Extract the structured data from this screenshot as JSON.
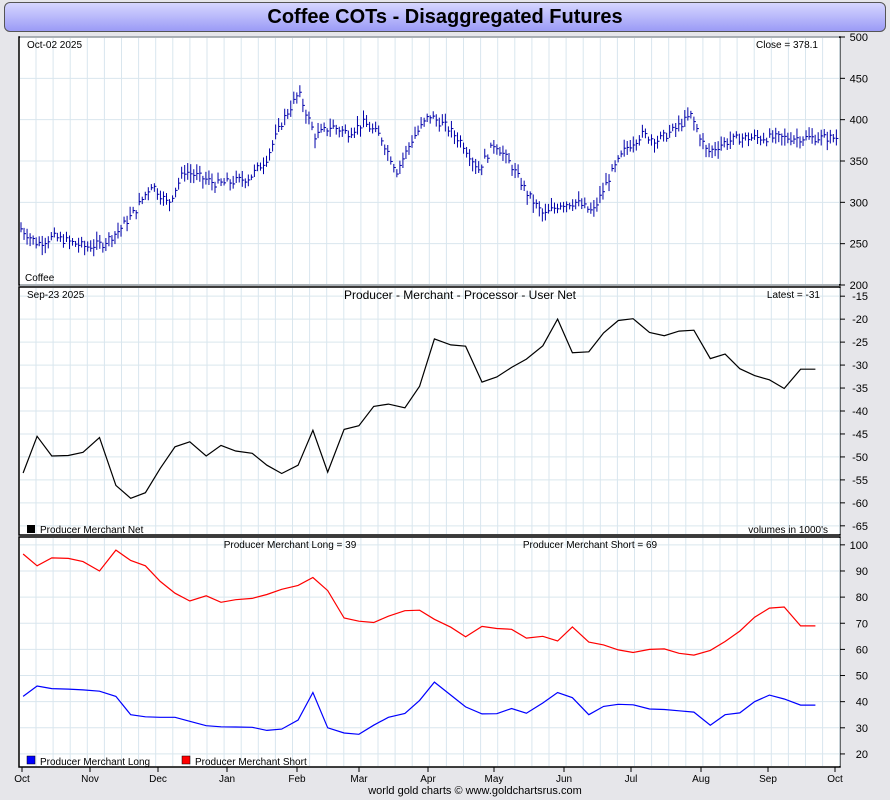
{
  "title": "Coffee COTs - Disaggregated Futures",
  "footer": "world gold charts © www.goldchartsrus.com",
  "x_axis_labels": [
    "Oct",
    "Nov",
    "Dec",
    "Jan",
    "Feb",
    "Mar",
    "Apr",
    "May",
    "Jun",
    "Jul",
    "Aug",
    "Sep",
    "Oct"
  ],
  "colors": {
    "price": "#0000aa",
    "net": "#000000",
    "long": "#0000ff",
    "short": "#ff0000",
    "grid": "#d9e6ee",
    "title_bar": "#9b9bf6"
  },
  "chart_data": [
    {
      "type": "bar",
      "subtype": "ohlc",
      "name": "Coffee",
      "date_label": "Oct-02  2025",
      "close_label": "Close = 378.1",
      "ylim": [
        200,
        500
      ],
      "yticks": [
        200,
        250,
        300,
        350,
        400,
        450,
        500
      ],
      "x": [
        0,
        0.02,
        0.04,
        0.06,
        0.08,
        0.1,
        0.12,
        0.14,
        0.16,
        0.18,
        0.2,
        0.22,
        0.24,
        0.26,
        0.28,
        0.3,
        0.32,
        0.34,
        0.36,
        0.38,
        0.4,
        0.42,
        0.44,
        0.46,
        0.48,
        0.5,
        0.52,
        0.54,
        0.56,
        0.58,
        0.6,
        0.62,
        0.64,
        0.66,
        0.68,
        0.7,
        0.72,
        0.74,
        0.76,
        0.78,
        0.8,
        0.82,
        0.84,
        0.86,
        0.88,
        0.9,
        0.92,
        0.94,
        0.96,
        0.98,
        1.0
      ],
      "close": [
        268,
        250,
        258,
        252,
        246,
        250,
        266,
        290,
        322,
        298,
        338,
        330,
        322,
        325,
        330,
        352,
        398,
        432,
        380,
        392,
        384,
        396,
        380,
        338,
        378,
        405,
        392,
        372,
        340,
        372,
        345,
        310,
        284,
        298,
        300,
        288,
        330,
        365,
        382,
        375,
        388,
        405,
        360,
        372,
        378,
        378,
        378,
        378,
        378,
        378,
        378
      ],
      "x_end": 0.998
    },
    {
      "type": "line",
      "title": "Producer - Merchant - Processor - User Net",
      "date_label": "Sep-23  2025",
      "latest_label": "Latest = -31",
      "legend": "Producer Merchant Net",
      "units_label": "volumes in 1000's",
      "ylim": [
        -67,
        -13
      ],
      "yticks": [
        -65,
        -60,
        -55,
        -50,
        -45,
        -40,
        -35,
        -30,
        -25,
        -20,
        -15
      ],
      "x": [
        0.005,
        0.022,
        0.04,
        0.06,
        0.078,
        0.098,
        0.118,
        0.136,
        0.154,
        0.172,
        0.19,
        0.208,
        0.228,
        0.246,
        0.264,
        0.284,
        0.302,
        0.32,
        0.34,
        0.358,
        0.376,
        0.396,
        0.414,
        0.432,
        0.45,
        0.47,
        0.488,
        0.506,
        0.526,
        0.544,
        0.564,
        0.582,
        0.6,
        0.618,
        0.638,
        0.656,
        0.674,
        0.694,
        0.712,
        0.73,
        0.748,
        0.768,
        0.786,
        0.804,
        0.822,
        0.842,
        0.86,
        0.878,
        0.896,
        0.914,
        0.932,
        0.952,
        0.97
      ],
      "values": [
        -53.5,
        -45.5,
        -49.8,
        -49.7,
        -49,
        -45.8,
        -56.2,
        -59,
        -57.8,
        -52.5,
        -47.8,
        -46.7,
        -49.8,
        -47.5,
        -48.7,
        -49.2,
        -51.8,
        -53.6,
        -51.8,
        -44.2,
        -53.3,
        -44,
        -43.2,
        -39,
        -38.5,
        -39.3,
        -34.6,
        -24.3,
        -25.6,
        -25.9,
        -33.7,
        -32.6,
        -30.5,
        -28.7,
        -25.8,
        -20,
        -27.3,
        -27.1,
        -23,
        -20.3,
        -19.9,
        -22.9,
        -23.6,
        -22.6,
        -22.4,
        -28.6,
        -27.6,
        -30.8,
        -32.3,
        -33.2,
        -35.1,
        -30.9,
        -30.9
      ],
      "series_legend_color": "#000000"
    },
    {
      "type": "line",
      "long_label": "Producer Merchant Long = 39",
      "short_label": "Producer Merchant Short = 69",
      "ylim": [
        15,
        103
      ],
      "yticks": [
        20,
        30,
        40,
        50,
        60,
        70,
        80,
        90,
        100
      ],
      "series": [
        {
          "name": "Producer Merchant Long",
          "color": "#0000ff",
          "values": [
            42,
            46,
            45,
            44.8,
            44.5,
            44,
            42,
            35,
            34.2,
            34,
            34,
            32.5,
            30.8,
            30.4,
            30.3,
            30.2,
            29,
            29.5,
            33,
            43.5,
            30,
            28,
            27.5,
            31,
            34,
            35.5,
            40.5,
            47.5,
            42.5,
            38,
            35.3,
            35.4,
            37.4,
            35.6,
            39.5,
            43.5,
            41.5,
            35,
            38.2,
            39,
            38.8,
            37.2,
            37,
            36.5,
            36,
            31,
            35,
            35.7,
            40,
            42.5,
            41,
            38.7,
            38.7
          ]
        },
        {
          "name": "Producer Merchant Short",
          "color": "#ff0000",
          "values": [
            96.5,
            92,
            95,
            94.8,
            93.6,
            90,
            98,
            94,
            92,
            86,
            81.5,
            78.5,
            80.5,
            78,
            79,
            79.5,
            81,
            83,
            84.5,
            87.5,
            82.5,
            72,
            70.8,
            70.3,
            72.7,
            74.8,
            75,
            71.5,
            68.5,
            64.8,
            68.8,
            68,
            67.7,
            64.3,
            65,
            63.2,
            68.6,
            62.8,
            61.7,
            59.8,
            58.8,
            60,
            60.2,
            58.5,
            57.8,
            59.6,
            63,
            67,
            72.3,
            75.8,
            76.2,
            69,
            69
          ]
        }
      ],
      "x": [
        0.005,
        0.022,
        0.04,
        0.06,
        0.078,
        0.098,
        0.118,
        0.136,
        0.154,
        0.172,
        0.19,
        0.208,
        0.228,
        0.246,
        0.264,
        0.284,
        0.302,
        0.32,
        0.34,
        0.358,
        0.376,
        0.396,
        0.414,
        0.432,
        0.45,
        0.47,
        0.488,
        0.506,
        0.526,
        0.544,
        0.564,
        0.582,
        0.6,
        0.618,
        0.638,
        0.656,
        0.674,
        0.694,
        0.712,
        0.73,
        0.748,
        0.768,
        0.786,
        0.804,
        0.822,
        0.842,
        0.86,
        0.878,
        0.896,
        0.914,
        0.932,
        0.952,
        0.97
      ]
    }
  ]
}
